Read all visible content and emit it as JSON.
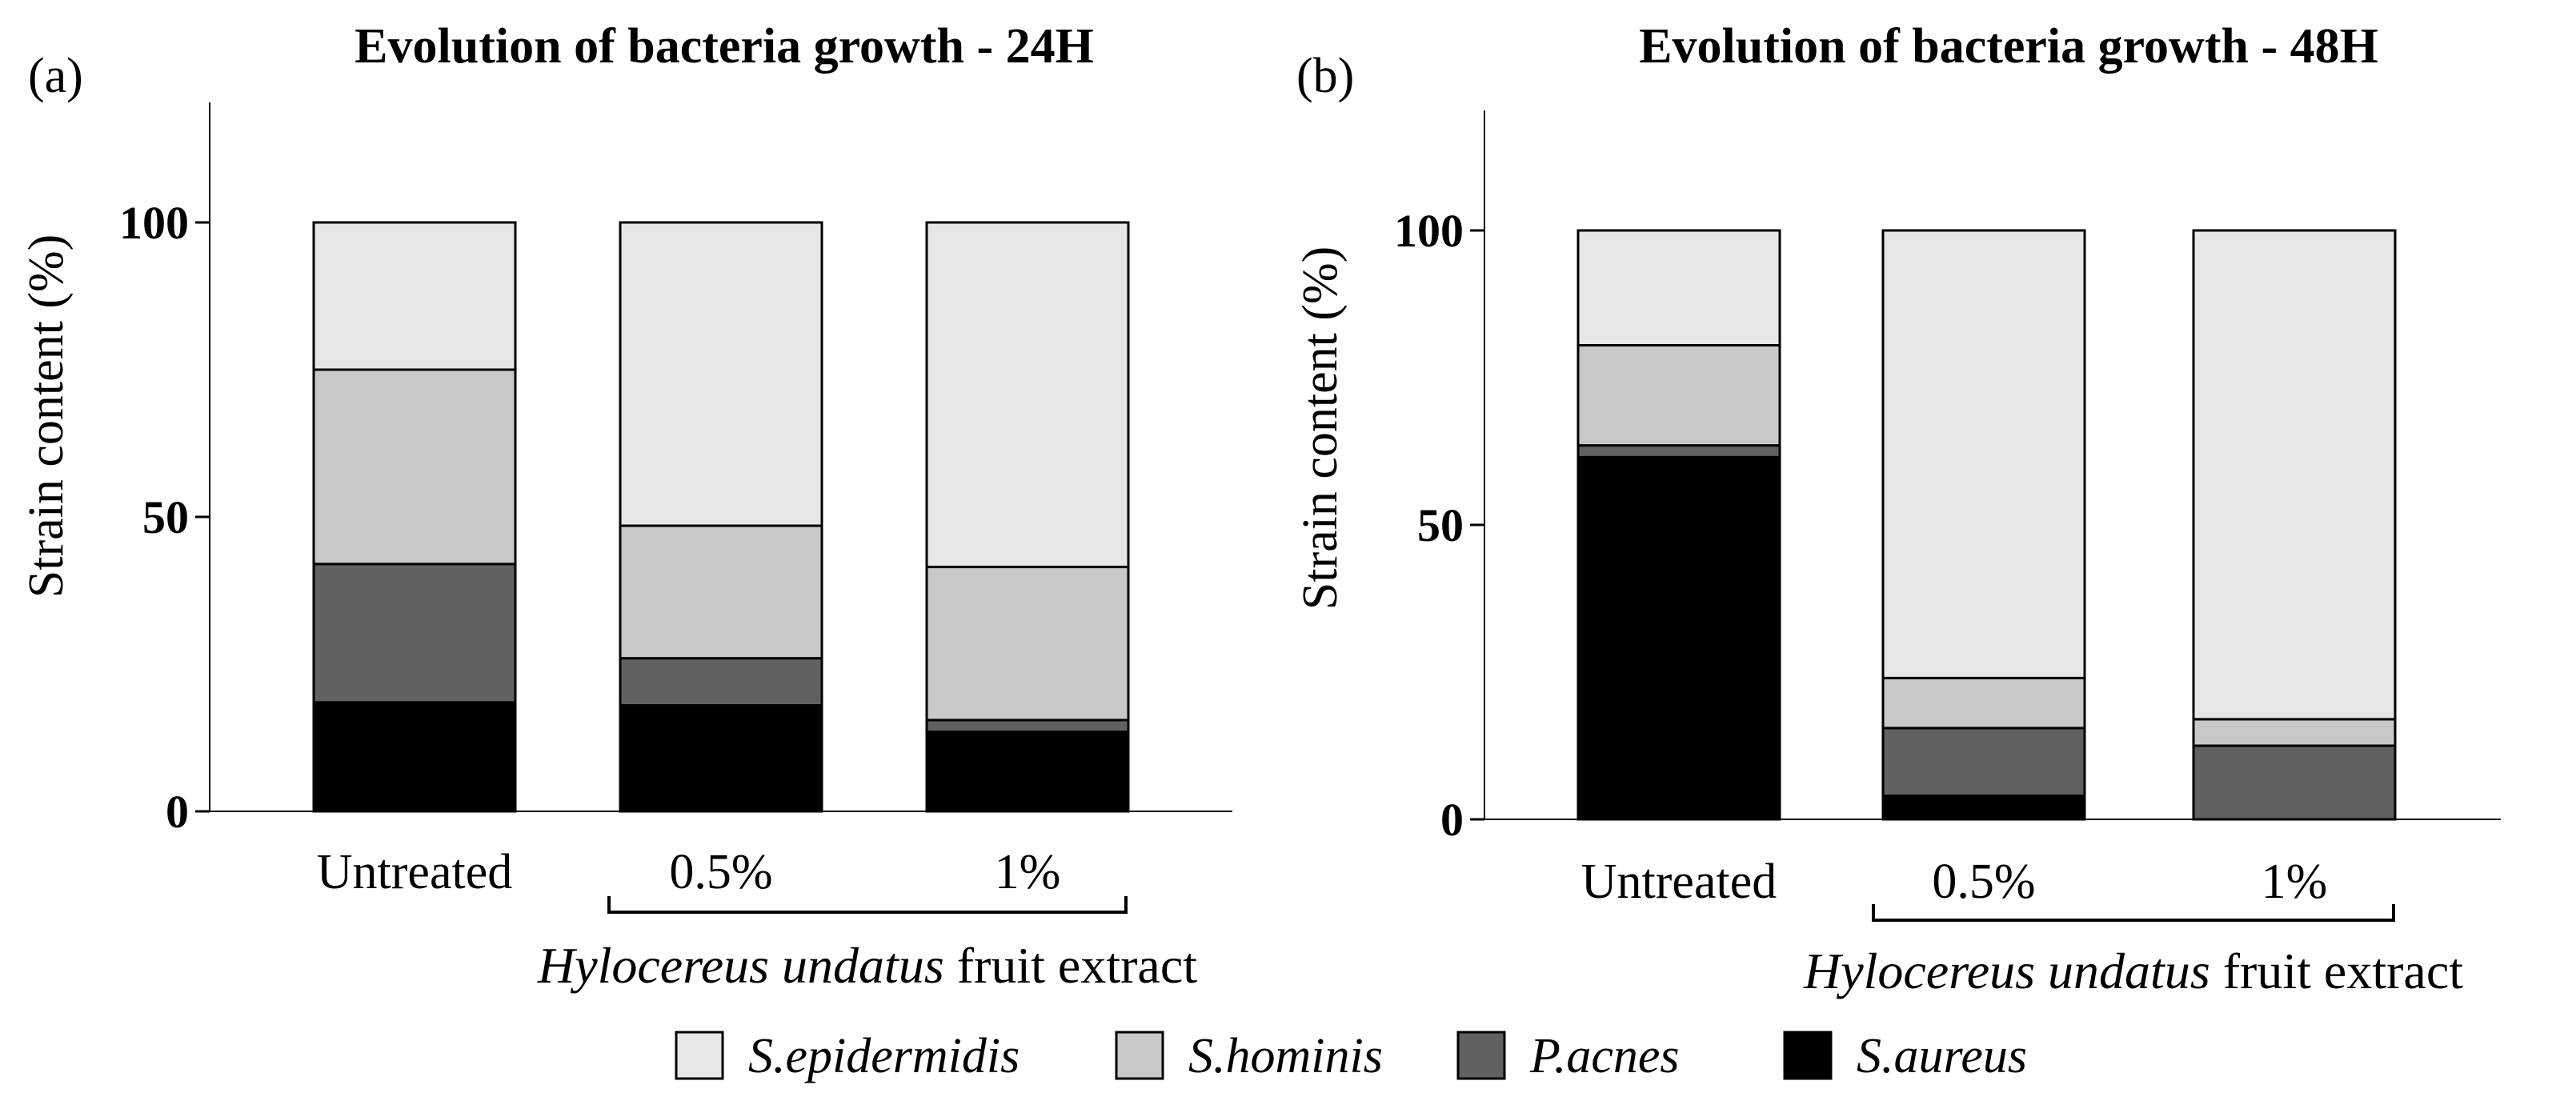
{
  "legend": [
    {
      "name": "S.epidermidis",
      "color": "#e6e6e6"
    },
    {
      "name": "S.hominis",
      "color": "#c8c8ca"
    },
    {
      "name": "P.acnes",
      "color": "#616161"
    },
    {
      "name": "S.aureus",
      "color": "#000000"
    }
  ],
  "chart_data": [
    {
      "type": "bar",
      "stacked": true,
      "panel": "(a)",
      "title": "Evolution of bacteria growth - 24H",
      "ylabel": "Strain content (%)",
      "ylim": [
        0,
        120
      ],
      "yticks": [
        0,
        50,
        100
      ],
      "categories": [
        "Untreated",
        "0.5%",
        "1%"
      ],
      "group_label": {
        "italic": "Hylocereus undatus",
        "rest": " fruit extract"
      },
      "series": [
        {
          "name": "S.aureus",
          "values": [
            18.5,
            18,
            13.5
          ]
        },
        {
          "name": "P.acnes",
          "values": [
            23.5,
            8,
            2
          ]
        },
        {
          "name": "S.hominis",
          "values": [
            33,
            22.5,
            26
          ]
        },
        {
          "name": "S.epidermidis",
          "values": [
            25,
            51.5,
            58.5
          ]
        }
      ]
    },
    {
      "type": "bar",
      "stacked": true,
      "panel": "(b)",
      "title": "Evolution of bacteria growth - 48H",
      "ylabel": "Strain content (%)",
      "ylim": [
        0,
        120
      ],
      "yticks": [
        0,
        50,
        100
      ],
      "categories": [
        "Untreated",
        "0.5%",
        "1%"
      ],
      "group_label": {
        "italic": "Hylocereus undatus",
        "rest": " fruit extract"
      },
      "series": [
        {
          "name": "S.aureus",
          "values": [
            61.5,
            4,
            0
          ]
        },
        {
          "name": "P.acnes",
          "values": [
            2,
            11.5,
            12.5
          ]
        },
        {
          "name": "S.hominis",
          "values": [
            17,
            8.5,
            4.5
          ]
        },
        {
          "name": "S.epidermidis",
          "values": [
            19.5,
            76,
            83
          ]
        }
      ]
    }
  ]
}
